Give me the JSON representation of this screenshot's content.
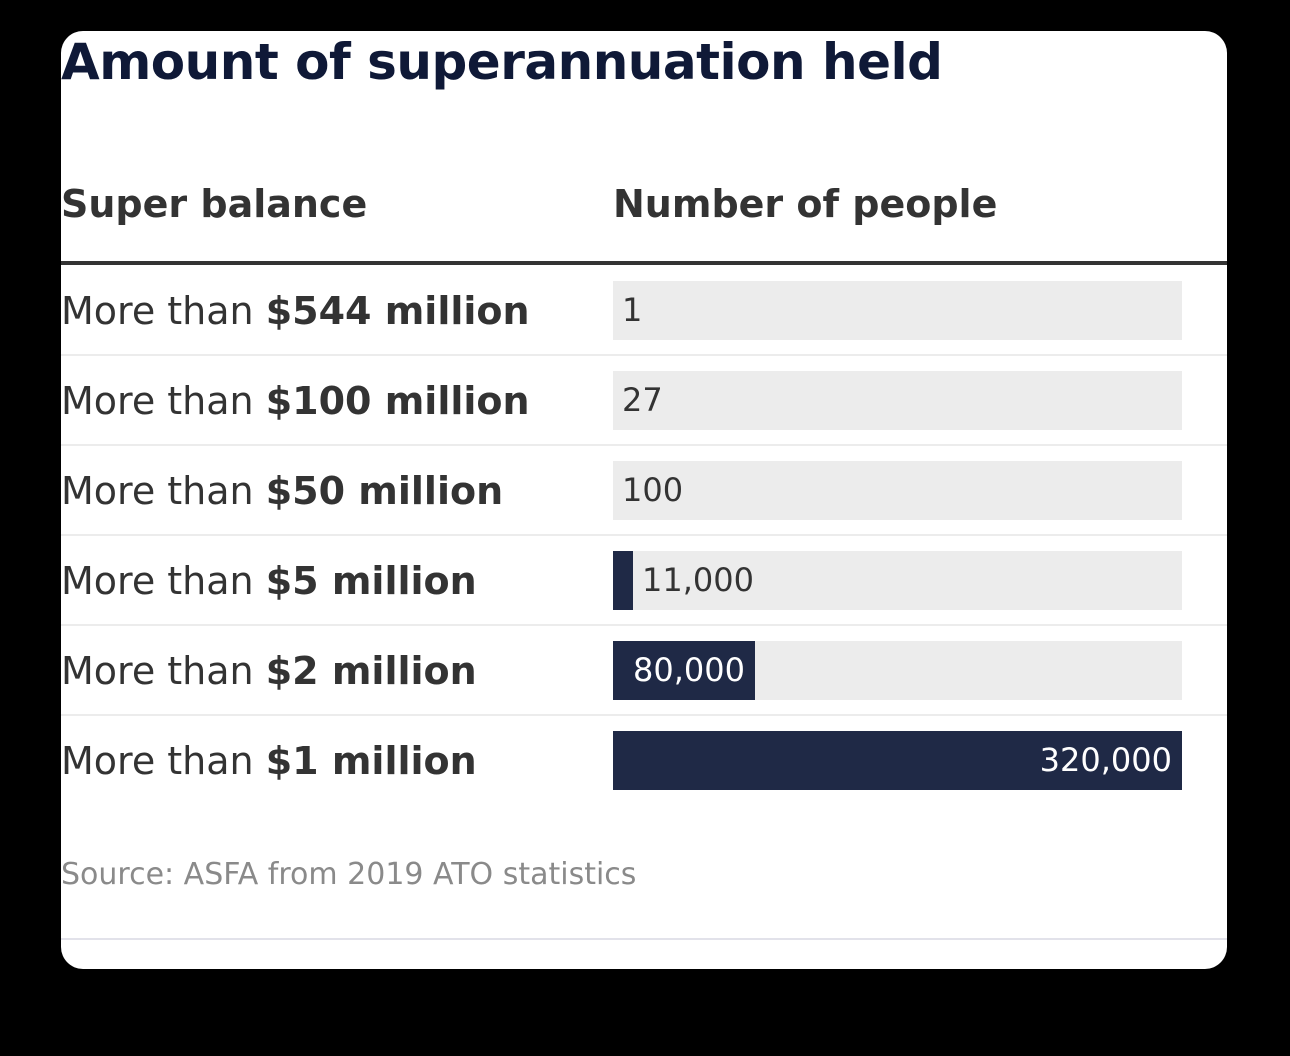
{
  "title": "Amount of superannuation held",
  "columns": {
    "left": "Super balance",
    "right": "Number of people"
  },
  "source": "Source: ASFA from 2019 ATO statistics",
  "colors": {
    "bar": "#1f2946",
    "track": "#ececec",
    "title": "#0f1937"
  },
  "rows": [
    {
      "prefix": "More than ",
      "amount": "$544 million",
      "value_label": "1"
    },
    {
      "prefix": "More than ",
      "amount": "$100 million",
      "value_label": "27"
    },
    {
      "prefix": "More than ",
      "amount": "$50 million",
      "value_label": "100"
    },
    {
      "prefix": "More than ",
      "amount": "$5 million",
      "value_label": "11,000"
    },
    {
      "prefix": "More than ",
      "amount": "$2 million",
      "value_label": "80,000"
    },
    {
      "prefix": "More than ",
      "amount": "$1 million",
      "value_label": "320,000"
    }
  ],
  "chart_data": {
    "type": "bar",
    "orientation": "horizontal",
    "title": "Amount of superannuation held",
    "xlabel": "Number of people",
    "ylabel": "Super balance",
    "categories": [
      "More than $544 million",
      "More than $100 million",
      "More than $50 million",
      "More than $5 million",
      "More than $2 million",
      "More than $1 million"
    ],
    "values": [
      1,
      27,
      100,
      11000,
      80000,
      320000
    ],
    "xlim": [
      0,
      320000
    ]
  }
}
